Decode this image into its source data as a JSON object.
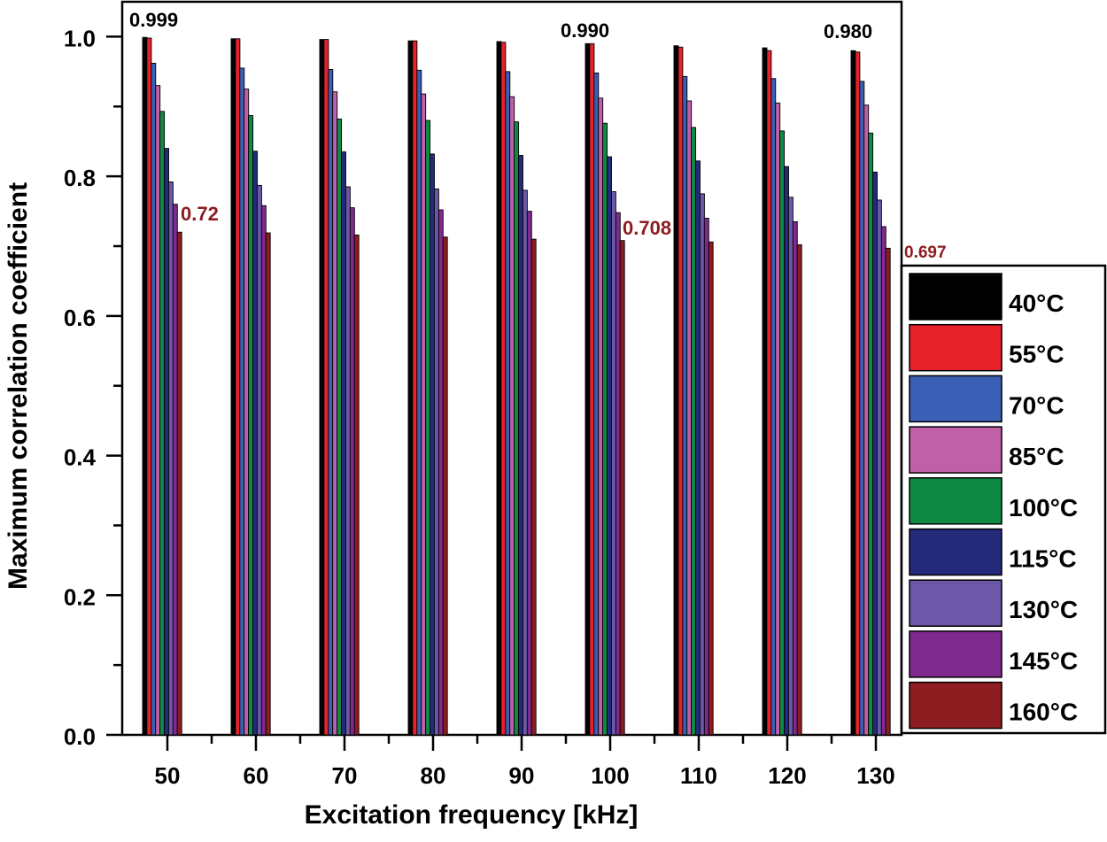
{
  "chart_data": {
    "type": "bar",
    "xlabel": "Excitation frequency [kHz]",
    "ylabel": "Maximum correlation coefficient",
    "ylim": [
      0,
      1.05
    ],
    "yticks": [
      "0.0",
      "0.2",
      "0.4",
      "0.6",
      "0.8",
      "1.0"
    ],
    "categories": [
      "50",
      "60",
      "70",
      "80",
      "90",
      "100",
      "110",
      "120",
      "130"
    ],
    "series": [
      {
        "name": "40°C",
        "color": "#000000",
        "values": [
          0.999,
          0.997,
          0.996,
          0.994,
          0.993,
          0.99,
          0.987,
          0.984,
          0.98
        ]
      },
      {
        "name": "55°C",
        "color": "#e8222a",
        "values": [
          0.998,
          0.997,
          0.996,
          0.994,
          0.992,
          0.99,
          0.985,
          0.98,
          0.978
        ]
      },
      {
        "name": "70°C",
        "color": "#3b5fb4",
        "values": [
          0.962,
          0.955,
          0.953,
          0.952,
          0.95,
          0.948,
          0.943,
          0.94,
          0.936
        ]
      },
      {
        "name": "85°C",
        "color": "#c060a8",
        "values": [
          0.93,
          0.925,
          0.921,
          0.918,
          0.914,
          0.912,
          0.908,
          0.905,
          0.902
        ]
      },
      {
        "name": "100°C",
        "color": "#0f8a45",
        "values": [
          0.893,
          0.887,
          0.882,
          0.88,
          0.878,
          0.876,
          0.87,
          0.865,
          0.862
        ]
      },
      {
        "name": "115°C",
        "color": "#232b7a",
        "values": [
          0.84,
          0.836,
          0.835,
          0.832,
          0.83,
          0.828,
          0.822,
          0.814,
          0.806
        ]
      },
      {
        "name": "130°C",
        "color": "#6c58a8",
        "values": [
          0.792,
          0.787,
          0.785,
          0.782,
          0.78,
          0.778,
          0.775,
          0.77,
          0.766
        ]
      },
      {
        "name": "145°C",
        "color": "#7e2a8e",
        "values": [
          0.76,
          0.758,
          0.755,
          0.752,
          0.75,
          0.748,
          0.74,
          0.735,
          0.728
        ]
      },
      {
        "name": "160°C",
        "color": "#8c1c20",
        "values": [
          0.72,
          0.719,
          0.716,
          0.713,
          0.71,
          0.708,
          0.706,
          0.702,
          0.697
        ]
      }
    ],
    "annotations": [
      {
        "text": "0.999",
        "category": "50",
        "color": "#000000"
      },
      {
        "text": "0.72",
        "category": "50",
        "color": "#8c1c20"
      },
      {
        "text": "0.990",
        "category": "100",
        "color": "#000000"
      },
      {
        "text": "0.708",
        "category": "100",
        "color": "#8c1c20"
      },
      {
        "text": "0.980",
        "category": "130",
        "color": "#000000"
      },
      {
        "text": "0.697",
        "category": "130",
        "color": "#8c1c20"
      }
    ],
    "legend": {
      "position": "right"
    },
    "grid": false
  }
}
